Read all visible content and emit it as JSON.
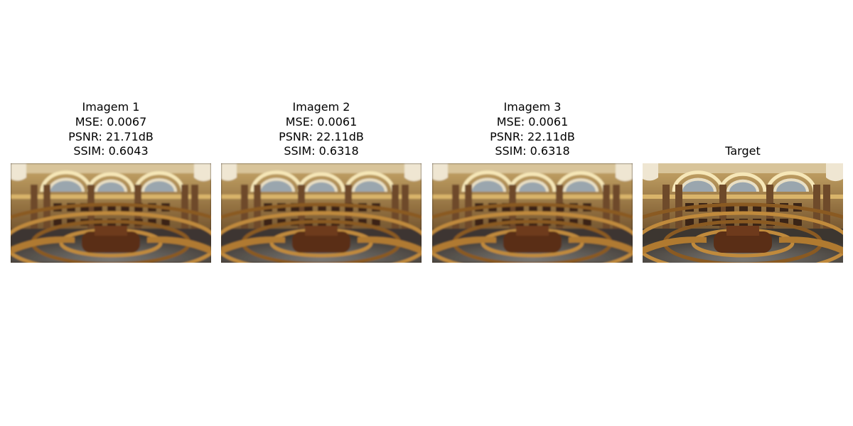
{
  "panels": [
    {
      "title": "Imagem 1",
      "mse": "MSE: 0.0067",
      "psnr": "PSNR: 21.71dB",
      "ssim": "SSIM: 0.6043",
      "image_description_icon": "library-reading-room-photo-icon",
      "blurred": true
    },
    {
      "title": "Imagem 2",
      "mse": "MSE: 0.0061",
      "psnr": "PSNR: 22.11dB",
      "ssim": "SSIM: 0.6318",
      "image_description_icon": "library-reading-room-photo-icon",
      "blurred": true
    },
    {
      "title": "Imagem 3",
      "mse": "MSE: 0.0061",
      "psnr": "PSNR: 22.11dB",
      "ssim": "SSIM: 0.6318",
      "image_description_icon": "library-reading-room-photo-icon",
      "blurred": true
    },
    {
      "title": "Target",
      "image_description_icon": "library-reading-room-photo-icon",
      "blurred": false
    }
  ],
  "colors": {
    "background": "#ffffff",
    "text": "#000000",
    "wall_gold": "#b8944f",
    "dome_light": "#f3e3b4",
    "wood_dark": "#4a2a14",
    "floor": "#6b6a66"
  }
}
